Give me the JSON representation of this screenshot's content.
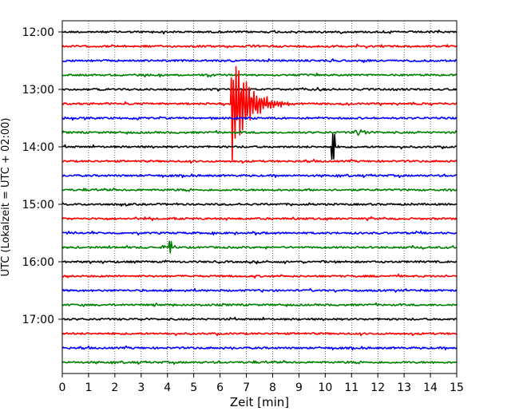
{
  "chart_data": {
    "type": "line",
    "title": "",
    "xlabel": "Zeit  [min]",
    "ylabel": "UTC (Lokalzeit = UTC + 02:00)",
    "xlim": [
      0,
      15
    ],
    "x_ticks": [
      "0",
      "1",
      "2",
      "3",
      "4",
      "5",
      "6",
      "7",
      "8",
      "9",
      "10",
      "11",
      "12",
      "13",
      "14",
      "15"
    ],
    "y_ticks": [
      "12:00",
      "13:00",
      "14:00",
      "15:00",
      "16:00",
      "17:00"
    ],
    "grid": {
      "vertical_dotted": true
    },
    "trace_interval_minutes": 15,
    "trace_start": "12:00",
    "trace_colors": [
      "#000000",
      "#ff0000",
      "#0000ff",
      "#008000"
    ],
    "traces": [
      {
        "start": "12:00",
        "color": "#000000"
      },
      {
        "start": "12:15",
        "color": "#ff0000"
      },
      {
        "start": "12:30",
        "color": "#0000ff"
      },
      {
        "start": "12:45",
        "color": "#008000"
      },
      {
        "start": "13:00",
        "color": "#000000"
      },
      {
        "start": "13:15",
        "color": "#ff0000",
        "events": [
          {
            "t": 6.4,
            "type": "quake",
            "amplitude": "large",
            "duration_min": 2.6
          }
        ]
      },
      {
        "start": "13:30",
        "color": "#0000ff"
      },
      {
        "start": "13:45",
        "color": "#008000",
        "events": [
          {
            "t": 11.3,
            "type": "burst",
            "amplitude": "small",
            "duration_min": 0.8
          }
        ]
      },
      {
        "start": "14:00",
        "color": "#000000",
        "events": [
          {
            "t": 10.3,
            "type": "spike",
            "amplitude": "medium",
            "duration_min": 0.1
          }
        ]
      },
      {
        "start": "14:15",
        "color": "#ff0000"
      },
      {
        "start": "14:30",
        "color": "#0000ff"
      },
      {
        "start": "14:45",
        "color": "#008000"
      },
      {
        "start": "15:00",
        "color": "#000000"
      },
      {
        "start": "15:15",
        "color": "#ff0000"
      },
      {
        "start": "15:30",
        "color": "#0000ff"
      },
      {
        "start": "15:45",
        "color": "#008000",
        "events": [
          {
            "t": 4.1,
            "type": "spike",
            "amplitude": "small",
            "duration_min": 0.05
          }
        ]
      },
      {
        "start": "16:00",
        "color": "#000000"
      },
      {
        "start": "16:15",
        "color": "#ff0000"
      },
      {
        "start": "16:30",
        "color": "#0000ff"
      },
      {
        "start": "16:45",
        "color": "#008000"
      },
      {
        "start": "17:00",
        "color": "#000000"
      },
      {
        "start": "17:15",
        "color": "#ff0000"
      },
      {
        "start": "17:30",
        "color": "#0000ff"
      },
      {
        "start": "17:45",
        "color": "#008000"
      }
    ]
  }
}
